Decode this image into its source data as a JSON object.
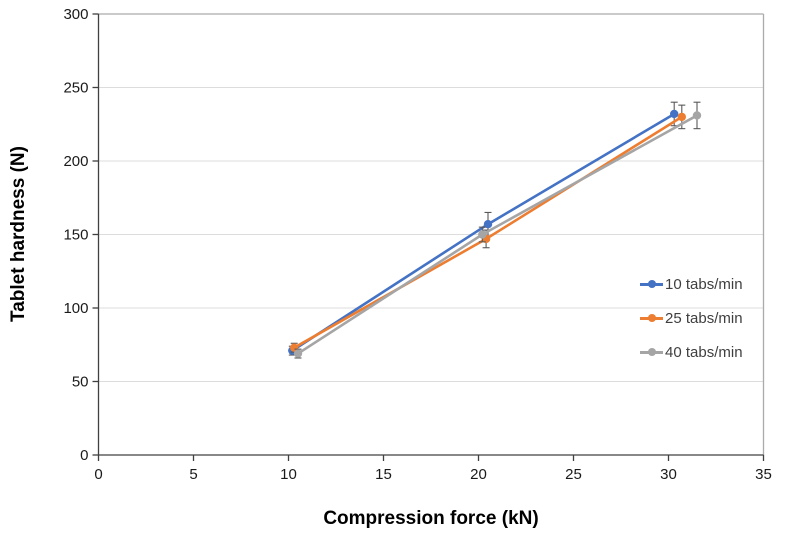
{
  "chart_data": {
    "type": "line",
    "title": "",
    "xlabel": "Compression force (kN)",
    "ylabel": "Tablet hardness (N)",
    "xlim": [
      0,
      35
    ],
    "ylim": [
      0,
      300
    ],
    "x_ticks": [
      0,
      5,
      10,
      15,
      20,
      25,
      30,
      35
    ],
    "y_ticks": [
      0,
      50,
      100,
      150,
      200,
      250,
      300
    ],
    "grid": "horizontal-only",
    "legend_position": "inside-right",
    "series": [
      {
        "name": "10 tabs/min",
        "color": "#4472C4",
        "points": [
          {
            "x": 10.2,
            "y": 71,
            "err": 3
          },
          {
            "x": 20.5,
            "y": 157,
            "err": 8
          },
          {
            "x": 30.3,
            "y": 232,
            "err": 8
          }
        ]
      },
      {
        "name": "25 tabs/min",
        "color": "#ED7D31",
        "points": [
          {
            "x": 10.3,
            "y": 73,
            "err": 3
          },
          {
            "x": 20.4,
            "y": 147,
            "err": 6
          },
          {
            "x": 30.7,
            "y": 230,
            "err": 8
          }
        ]
      },
      {
        "name": "40 tabs/min",
        "color": "#A5A5A5",
        "points": [
          {
            "x": 10.5,
            "y": 69,
            "err": 3
          },
          {
            "x": 20.2,
            "y": 150,
            "err": 5
          },
          {
            "x": 31.5,
            "y": 231,
            "err": 9
          }
        ]
      }
    ],
    "colors": {
      "axis_line": "#404040",
      "plot_border": "#ABABAB",
      "gridline": "#DCDCDC",
      "error_bar": "#595959",
      "tick_label": "#1a1a1a",
      "legend_text": "#3f3f3f",
      "background": "#ffffff"
    }
  }
}
